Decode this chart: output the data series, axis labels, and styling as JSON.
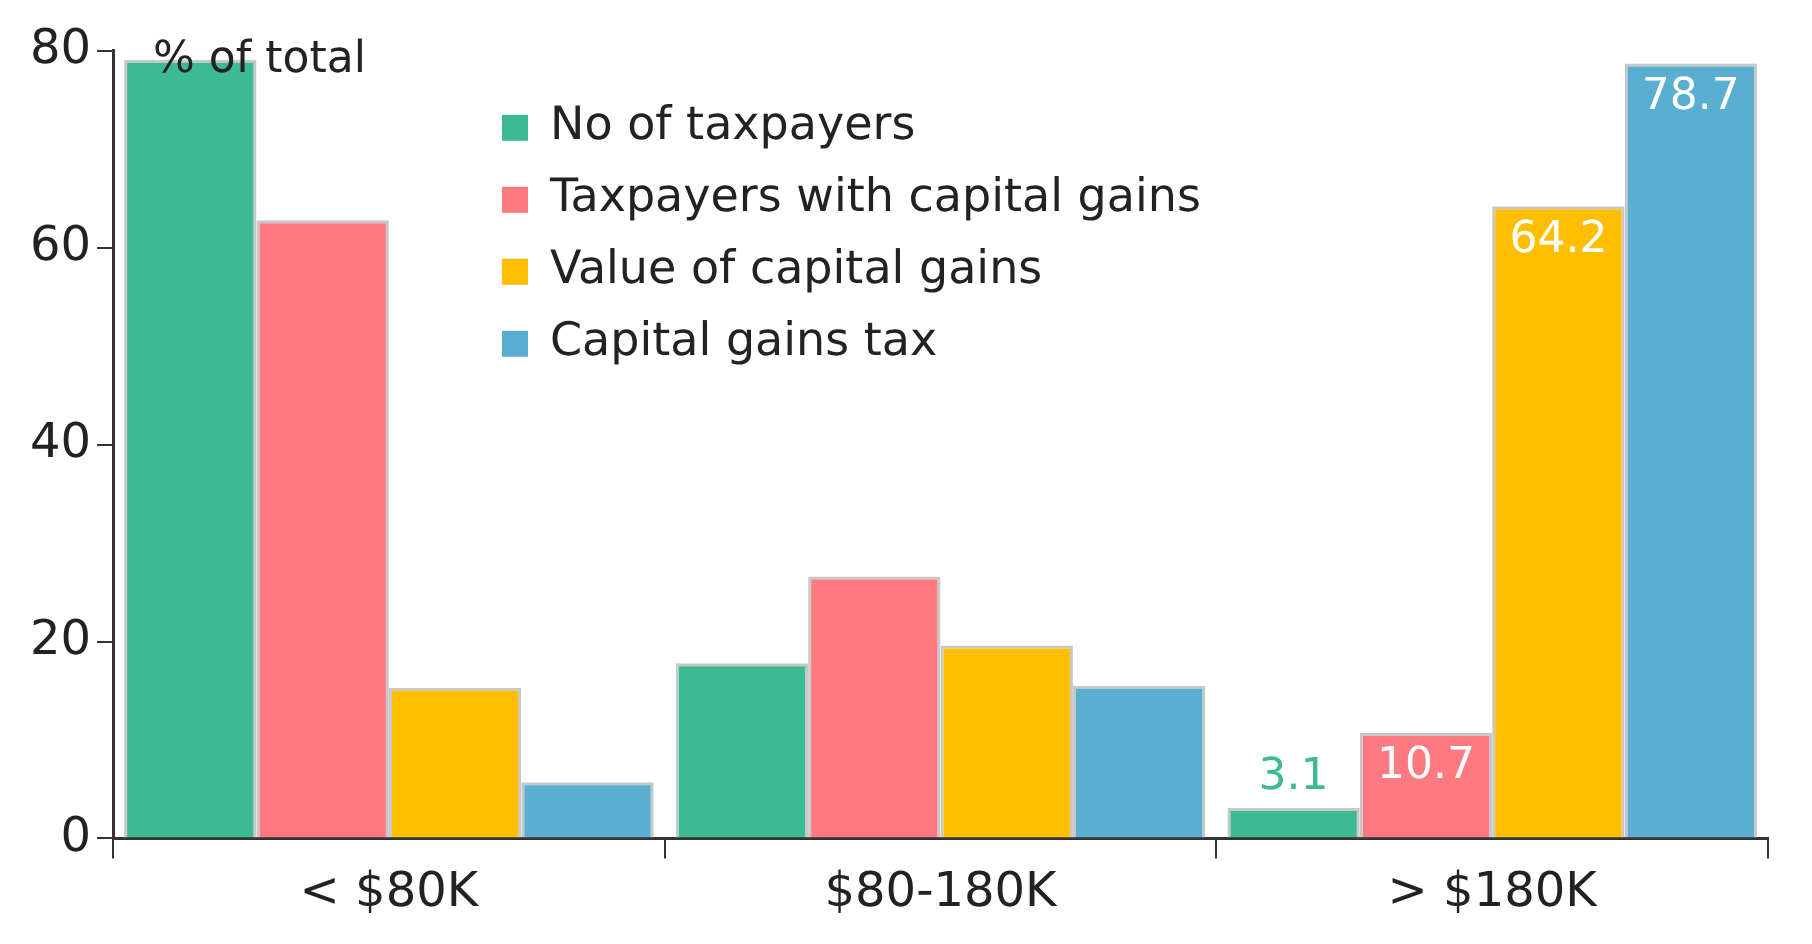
{
  "chart_data": {
    "type": "bar",
    "ylabel": "% of total",
    "categories": [
      "< $80K",
      "$80-180K",
      "> $180K"
    ],
    "series": [
      {
        "name": "No of taxpayers",
        "color": "#3dba93",
        "values": [
          79.1,
          17.8,
          3.1
        ],
        "value_labels": [
          null,
          null,
          "3.1"
        ]
      },
      {
        "name": "Taxpayers with capital gains",
        "color": "#ff7a80",
        "values": [
          62.8,
          26.6,
          10.7
        ],
        "value_labels": [
          null,
          null,
          "10.7"
        ]
      },
      {
        "name": "Value of capital gains",
        "color": "#ffbf00",
        "values": [
          15.3,
          19.6,
          64.2
        ],
        "value_labels": [
          null,
          null,
          "64.2"
        ]
      },
      {
        "name": "Capital gains tax",
        "color": "#5aaed0",
        "values": [
          5.7,
          15.5,
          78.7
        ],
        "value_labels": [
          null,
          null,
          "78.7"
        ]
      }
    ],
    "ylim": [
      0,
      80
    ],
    "yticks": [
      0,
      20,
      40,
      60,
      80
    ],
    "grid": false,
    "legend": "top"
  }
}
